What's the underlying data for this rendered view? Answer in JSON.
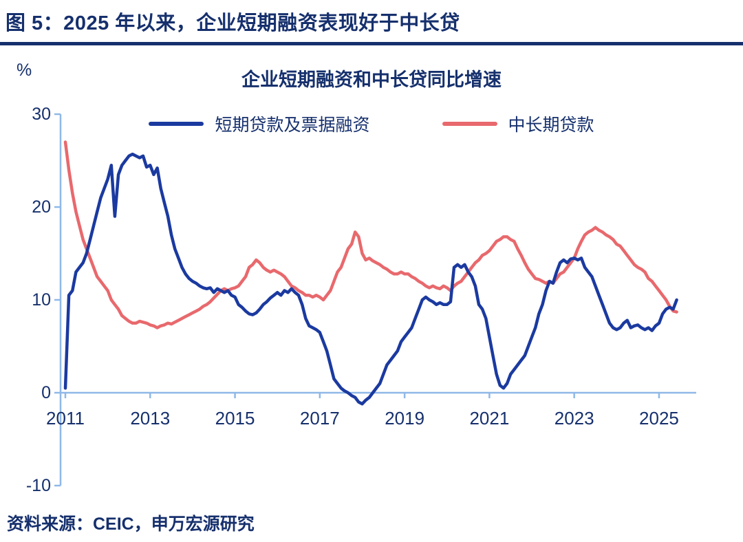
{
  "figure": {
    "title": "图 5：2025 年以来，企业短期融资表现好于中长贷"
  },
  "source": {
    "text": "资料来源：CEIC，申万宏源研究"
  },
  "chart_data": {
    "type": "line",
    "title": "企业短期融资和中长贷同比增速",
    "xlabel": "",
    "ylabel": "%",
    "ylim": [
      -10,
      30
    ],
    "y_ticks": [
      30,
      20,
      10,
      0,
      -10
    ],
    "y_tick_labels": [
      "30",
      "20",
      "10",
      "0",
      "-10"
    ],
    "x_tick_years": [
      2011,
      2013,
      2015,
      2017,
      2019,
      2021,
      2023,
      2025
    ],
    "x_tick_labels": [
      "2011",
      "2013",
      "2015",
      "2017",
      "2019",
      "2021",
      "2023",
      "2025"
    ],
    "x_start": "2011-01",
    "x_end": "2025-06",
    "x_freq": "monthly",
    "grid": false,
    "legend_position": "top-center",
    "colors": {
      "short_term": "#1b3aa0",
      "medium_long": "#e8696d",
      "axis": "#8fb8e8",
      "text": "#16306d"
    },
    "series": [
      {
        "name": "短期贷款及票据融资",
        "color_key": "short_term",
        "values": [
          0.5,
          10.5,
          11.0,
          13.0,
          13.5,
          14.0,
          15.0,
          16.5,
          18.0,
          19.5,
          21.0,
          22.0,
          23.0,
          24.5,
          19.0,
          23.5,
          24.5,
          25.0,
          25.5,
          25.7,
          25.5,
          25.3,
          25.5,
          24.3,
          24.5,
          23.5,
          24.2,
          22.0,
          20.5,
          19.0,
          17.0,
          15.5,
          14.5,
          13.5,
          12.8,
          12.3,
          12.0,
          11.8,
          11.5,
          11.3,
          11.2,
          11.3,
          10.8,
          11.2,
          11.0,
          10.8,
          11.0,
          10.5,
          10.3,
          9.5,
          9.2,
          8.8,
          8.5,
          8.4,
          8.6,
          9.0,
          9.5,
          9.8,
          10.2,
          10.5,
          10.8,
          10.5,
          11.0,
          10.8,
          11.2,
          10.8,
          10.5,
          9.5,
          8.0,
          7.2,
          7.0,
          6.8,
          6.5,
          5.5,
          4.5,
          3.0,
          1.5,
          1.0,
          0.5,
          0.2,
          0.0,
          -0.3,
          -0.5,
          -1.0,
          -1.2,
          -0.8,
          -0.5,
          0.0,
          0.5,
          1.0,
          2.0,
          3.0,
          3.5,
          4.0,
          4.5,
          5.5,
          6.0,
          6.5,
          7.0,
          8.0,
          9.0,
          10.0,
          10.3,
          10.0,
          9.8,
          9.5,
          9.7,
          9.5,
          9.5,
          9.8,
          13.5,
          13.8,
          13.5,
          13.8,
          13.0,
          12.5,
          11.5,
          9.5,
          9.0,
          8.0,
          6.0,
          4.0,
          2.0,
          0.8,
          0.5,
          1.0,
          2.0,
          2.5,
          3.0,
          3.5,
          4.0,
          5.0,
          6.0,
          7.0,
          8.5,
          9.5,
          11.0,
          12.0,
          11.8,
          13.0,
          14.0,
          14.3,
          14.0,
          14.4,
          14.5,
          14.3,
          14.5,
          13.5,
          13.0,
          12.5,
          11.5,
          10.5,
          9.5,
          8.5,
          7.5,
          7.0,
          6.8,
          7.0,
          7.5,
          7.8,
          7.0,
          7.2,
          7.3,
          7.0,
          6.8,
          7.0,
          6.7,
          7.2,
          7.5,
          8.5,
          9.0,
          9.2,
          9.0,
          10.0
        ]
      },
      {
        "name": "中长期贷款",
        "color_key": "medium_long",
        "values": [
          27.0,
          24.0,
          21.5,
          19.5,
          18.0,
          16.5,
          15.5,
          14.5,
          13.5,
          12.5,
          12.0,
          11.5,
          11.0,
          10.0,
          9.5,
          9.0,
          8.3,
          8.0,
          7.7,
          7.5,
          7.5,
          7.7,
          7.6,
          7.5,
          7.3,
          7.2,
          7.0,
          7.2,
          7.3,
          7.5,
          7.4,
          7.6,
          7.8,
          8.0,
          8.2,
          8.4,
          8.6,
          8.8,
          9.0,
          9.3,
          9.5,
          9.8,
          10.2,
          10.6,
          11.0,
          11.2,
          11.0,
          11.2,
          11.3,
          11.5,
          12.0,
          12.5,
          13.5,
          13.8,
          14.3,
          14.0,
          13.5,
          13.2,
          13.0,
          13.2,
          13.0,
          12.8,
          12.5,
          12.0,
          11.5,
          11.3,
          11.0,
          10.8,
          10.5,
          10.5,
          10.3,
          10.5,
          10.3,
          10.0,
          10.5,
          11.0,
          12.0,
          13.0,
          13.5,
          14.5,
          15.5,
          16.0,
          17.3,
          16.8,
          15.0,
          14.3,
          14.5,
          14.2,
          14.0,
          13.8,
          13.5,
          13.3,
          13.0,
          12.8,
          12.8,
          13.0,
          12.8,
          12.8,
          12.5,
          12.3,
          12.0,
          11.8,
          11.5,
          11.3,
          11.5,
          11.3,
          11.2,
          11.5,
          11.3,
          11.0,
          11.5,
          11.8,
          12.0,
          12.5,
          13.0,
          13.5,
          14.0,
          14.3,
          14.8,
          15.0,
          15.3,
          15.8,
          16.3,
          16.5,
          16.8,
          16.8,
          16.5,
          16.3,
          15.5,
          14.8,
          14.0,
          13.3,
          12.8,
          12.3,
          12.2,
          12.0,
          11.8,
          12.0,
          11.8,
          12.3,
          12.8,
          13.0,
          13.5,
          14.0,
          14.5,
          15.5,
          16.3,
          17.0,
          17.3,
          17.5,
          17.8,
          17.5,
          17.3,
          17.0,
          16.8,
          16.5,
          16.0,
          15.8,
          15.3,
          14.8,
          14.3,
          13.8,
          13.5,
          13.3,
          13.0,
          12.3,
          12.0,
          11.5,
          11.0,
          10.5,
          10.0,
          9.3,
          8.8,
          8.7
        ]
      }
    ]
  }
}
